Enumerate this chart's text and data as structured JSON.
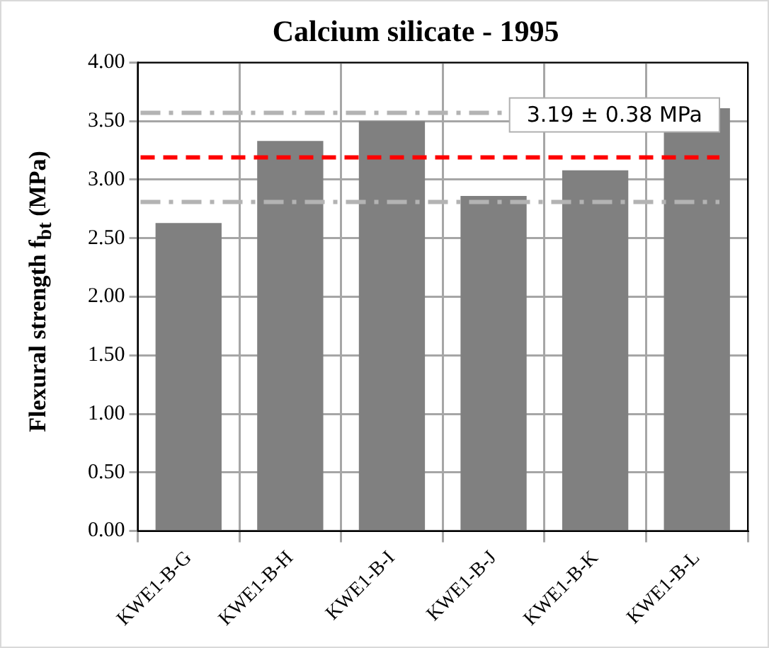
{
  "chart_data": {
    "type": "bar",
    "title": "Calcium silicate - 1995",
    "ylabel": "Flexural strength f$_{bt}$ (MPa)",
    "categories": [
      "KWE1-B-G",
      "KWE1-B-H",
      "KWE1-B-I",
      "KWE1-B-J",
      "KWE1-B-K",
      "KWE1-B-L"
    ],
    "values": [
      2.63,
      3.33,
      3.5,
      2.86,
      3.08,
      3.61
    ],
    "color": "#808080",
    "ylim": [
      0,
      4
    ],
    "yticks": [
      {
        "value": 0,
        "label": "0.00"
      },
      {
        "value": 0.5,
        "label": "0.50"
      },
      {
        "value": 1,
        "label": "1.00"
      },
      {
        "value": 1.5,
        "label": "1.50"
      },
      {
        "value": 2,
        "label": "2.00"
      },
      {
        "value": 2.5,
        "label": "2.50"
      },
      {
        "value": 3,
        "label": "3.00"
      },
      {
        "value": 3.5,
        "label": "3.50"
      },
      {
        "value": 4,
        "label": "4.00"
      }
    ],
    "ref_lines": [
      {
        "axis": "y",
        "value": 3.19,
        "label": "3.19 ± 0.38 MPa",
        "color": "#ff0000",
        "line_style": "dashed"
      },
      {
        "axis": "y",
        "value": 3.57,
        "color": "#b3b3b3",
        "line_style": "dashdot"
      },
      {
        "axis": "y",
        "value": 2.81,
        "color": "#b3b3b3",
        "line_style": "dashdot"
      }
    ],
    "grid": true
  }
}
